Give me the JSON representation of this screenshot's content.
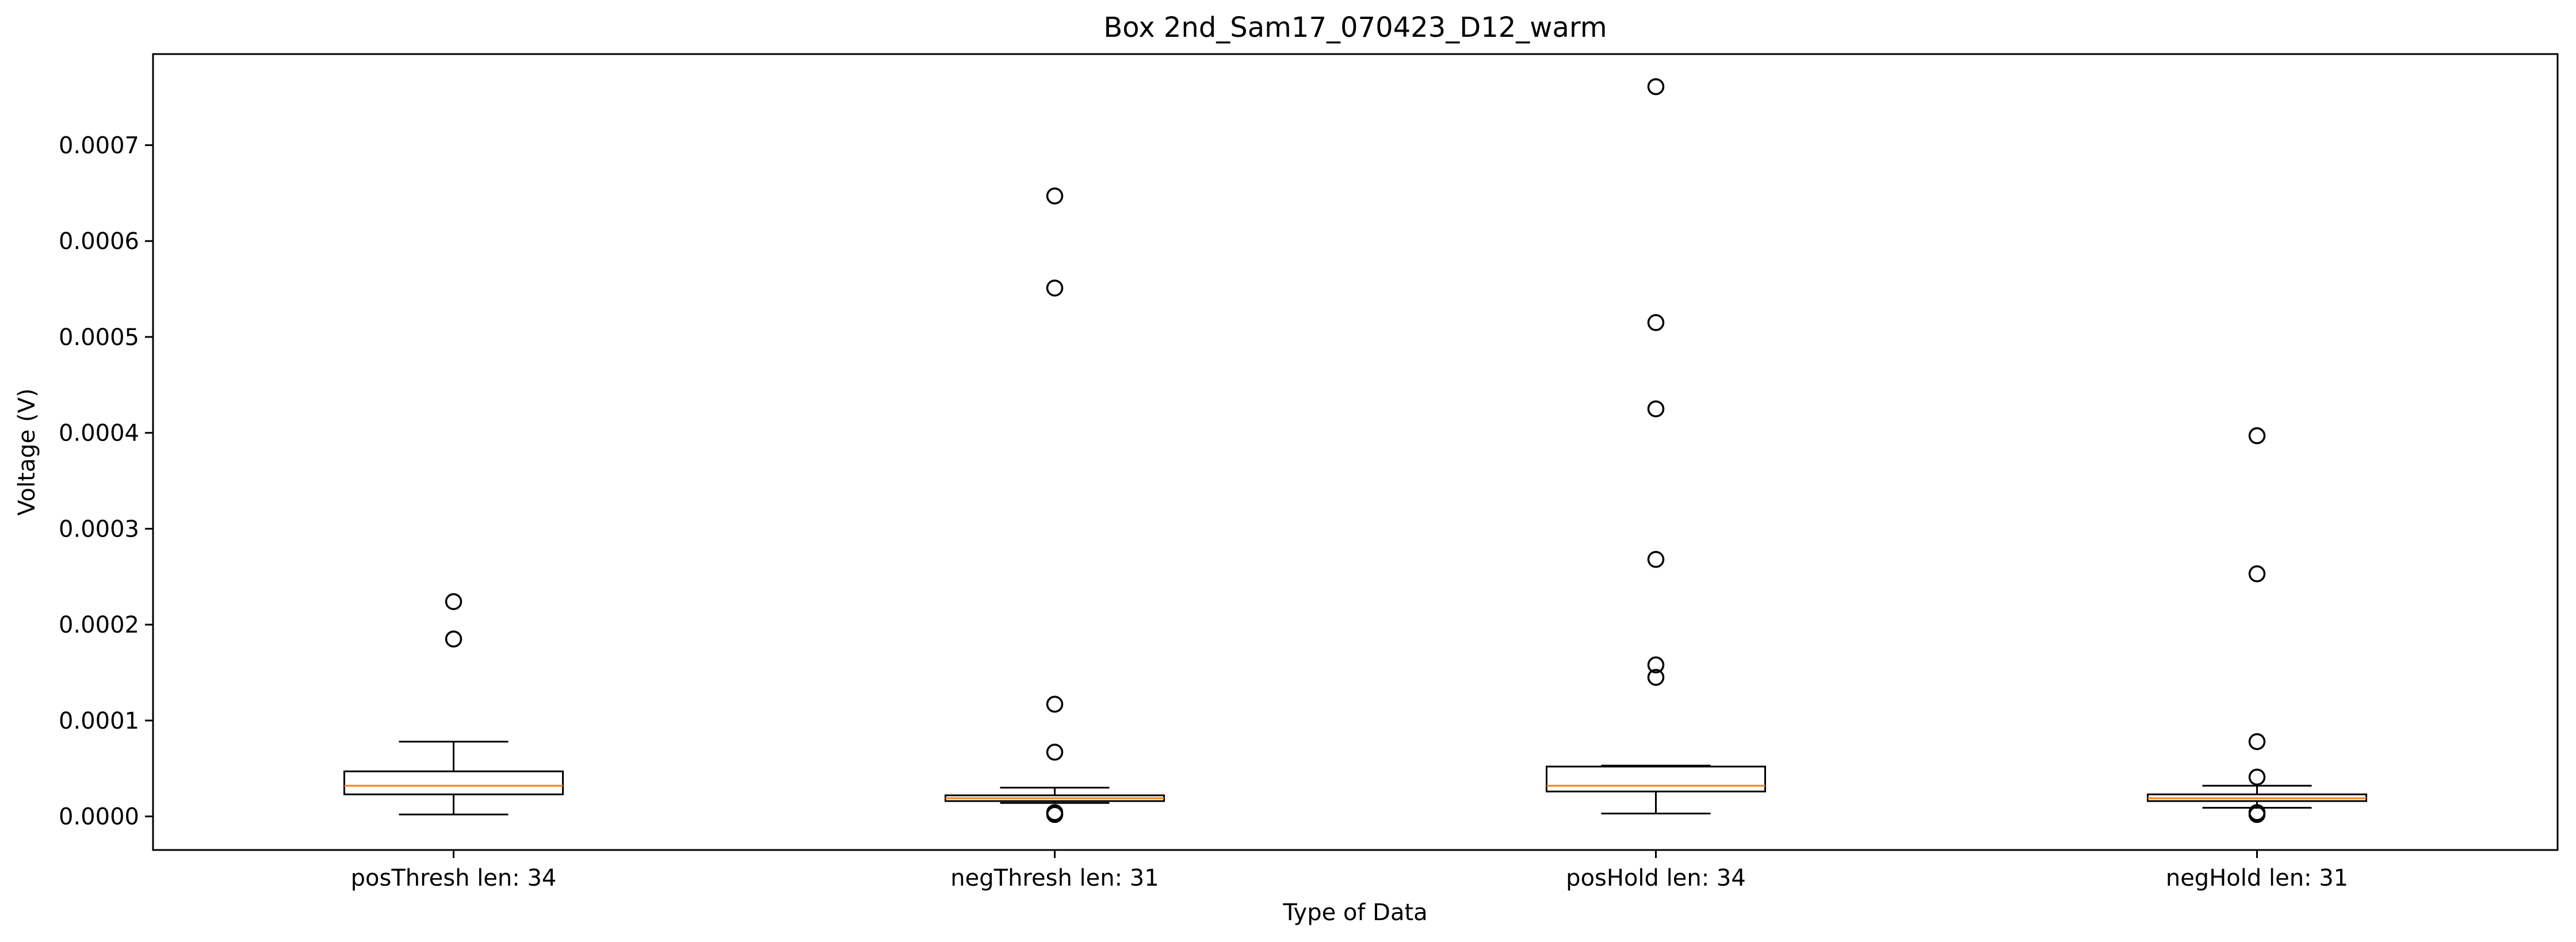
{
  "chart_data": {
    "type": "box",
    "title": "Box 2nd_Sam17_070423_D12_warm",
    "xlabel": "Type of Data",
    "ylabel": "Voltage (V)",
    "ylim": [
      -3.5e-05,
      0.000795
    ],
    "yticks": [
      "0.0000",
      "0.0001",
      "0.0002",
      "0.0003",
      "0.0004",
      "0.0005",
      "0.0006",
      "0.0007"
    ],
    "grid": false,
    "categories": [
      "posThresh len: 34",
      "negThresh len: 31",
      "posHold len: 34",
      "negHold len: 31"
    ],
    "boxes": [
      {
        "whisker_low": 2e-06,
        "q1": 2.3e-05,
        "median": 3.2e-05,
        "q3": 4.7e-05,
        "whisker_high": 7.8e-05,
        "outliers": [
          0.000185,
          0.000224
        ]
      },
      {
        "whisker_low": 1.4e-05,
        "q1": 1.6e-05,
        "median": 1.9e-05,
        "q3": 2.2e-05,
        "whisker_high": 3e-05,
        "outliers": [
          2e-06,
          4e-06,
          6.7e-05,
          0.000117,
          0.000551,
          0.000647
        ]
      },
      {
        "whisker_low": 3e-06,
        "q1": 2.6e-05,
        "median": 3.2e-05,
        "q3": 5.2e-05,
        "whisker_high": 5.3e-05,
        "outliers": [
          0.000145,
          0.000158,
          0.000268,
          0.000425,
          0.000515,
          0.000761
        ]
      },
      {
        "whisker_low": 9e-06,
        "q1": 1.6e-05,
        "median": 1.9e-05,
        "q3": 2.3e-05,
        "whisker_high": 3.2e-05,
        "outliers": [
          2e-06,
          4e-06,
          4.1e-05,
          7.8e-05,
          0.000253,
          0.000397
        ]
      }
    ],
    "colors": {
      "box": "#000000",
      "median": "#ff7f0e",
      "outlier": "#000000"
    }
  }
}
